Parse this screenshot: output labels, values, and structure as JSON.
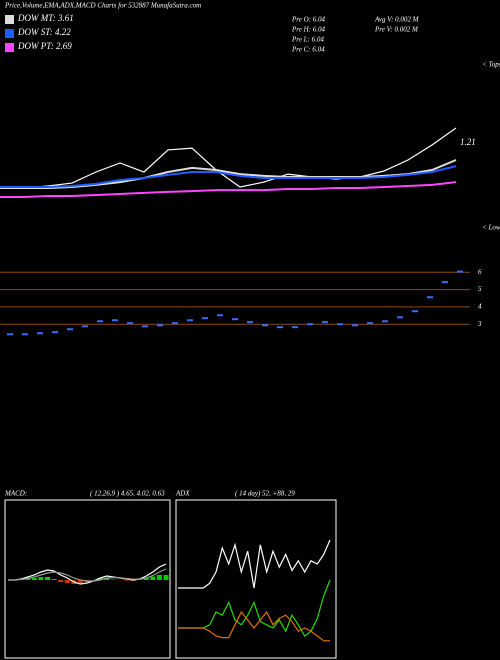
{
  "header": {
    "title": "Price,Volume,EMA,ADX,MACD Charts for 532887 MunafaSutra.com",
    "info": [
      "Pre O: 6.04",
      "Pre H: 6.04",
      "Pre L: 6.04",
      "Pre C: 6.04"
    ],
    "volume": [
      "Avg V: 0.002 M",
      "Pre V: 0.002 M"
    ]
  },
  "chart_data": [
    {
      "type": "line",
      "annotation": "1.21",
      "tops_label": "< Tops",
      "lows_label": "< Lows",
      "ylim": [
        0,
        100
      ],
      "series": [
        {
          "color": "#ffffff",
          "values": [
            25.3,
            24.7,
            25.9,
            27.6,
            34.1,
            39.4,
            34.1,
            47.1,
            48.2,
            35.3,
            25.3,
            28.2,
            32.9,
            31.2,
            30.0,
            31.2,
            34.7,
            41.2,
            50.0,
            60.0
          ]
        },
        {
          "name": "DOW MT: 3.61",
          "color": "#dddddd",
          "values": [
            24.7,
            24.7,
            24.7,
            25.3,
            26.5,
            28.2,
            30.6,
            34.1,
            36.5,
            35.3,
            32.9,
            31.8,
            31.2,
            31.2,
            31.2,
            31.2,
            31.8,
            32.9,
            35.3,
            41.2
          ]
        },
        {
          "name": "DOW ST: 4.22",
          "color": "#1f5cff",
          "values": [
            25.3,
            25.3,
            25.3,
            25.9,
            27.1,
            29.4,
            30.6,
            32.4,
            34.1,
            34.1,
            31.8,
            30.6,
            30.6,
            30.6,
            30.6,
            30.6,
            31.2,
            32.4,
            34.1,
            37.6
          ]
        },
        {
          "name": "DOW PT: 2.69",
          "color": "#ff44ff",
          "values": [
            19.4,
            19.4,
            20.0,
            20.0,
            20.6,
            21.2,
            21.8,
            22.4,
            22.9,
            23.5,
            23.5,
            23.5,
            24.1,
            24.1,
            24.7,
            24.7,
            25.3,
            25.9,
            26.5,
            28.2
          ]
        }
      ]
    },
    {
      "type": "dash",
      "color": "#3a6cff",
      "grid_color": "#8b4a12",
      "ylim": [
        1.8,
        7.0
      ],
      "yticks": [
        3,
        4,
        5,
        6
      ],
      "values": [
        2.42,
        2.42,
        2.48,
        2.54,
        2.71,
        2.88,
        3.17,
        3.23,
        3.06,
        2.88,
        2.94,
        3.06,
        3.23,
        3.35,
        3.52,
        3.29,
        3.12,
        2.94,
        2.83,
        2.83,
        3.0,
        3.12,
        3.0,
        2.94,
        3.06,
        3.17,
        3.4,
        3.75,
        4.56,
        5.43,
        6.04
      ]
    },
    {
      "type": "line",
      "title": "MACD:",
      "subtitle": "( 12,26,9 ) 4.65, 4.02, 0.63",
      "ylim": [
        -8,
        8
      ],
      "series": [
        {
          "style": "bar",
          "color": "#00cc00",
          "negative_color": "#cc3300",
          "values": [
            0,
            0,
            0.05,
            0.15,
            0.2,
            0.3,
            0.3,
            0.1,
            -0.2,
            -0.3,
            -0.4,
            -0.4,
            -0.2,
            0,
            0.2,
            0.2,
            0.05,
            -0.02,
            -0.05,
            -0.08,
            0.02,
            0.2,
            0.35,
            0.5,
            0.5
          ]
        },
        {
          "color": "#ffffff",
          "values": [
            0,
            0,
            0.1,
            0.3,
            0.5,
            0.8,
            1.0,
            0.9,
            0.5,
            0.2,
            -0.2,
            -0.4,
            -0.3,
            -0.1,
            0.2,
            0.4,
            0.3,
            0.2,
            0.1,
            0,
            0.1,
            0.4,
            0.8,
            1.3,
            1.6
          ]
        },
        {
          "color": "#999999",
          "values": [
            0,
            0,
            0.05,
            0.15,
            0.3,
            0.5,
            0.7,
            0.8,
            0.7,
            0.5,
            0.2,
            0,
            -0.1,
            -0.1,
            0,
            0.2,
            0.25,
            0.22,
            0.15,
            0.08,
            0.08,
            0.2,
            0.45,
            0.8,
            1.1
          ]
        }
      ]
    },
    {
      "type": "line",
      "title": "ADX",
      "subtitle": "( 14 day) 52, +88, 29",
      "ylim": [
        0,
        100
      ],
      "series": [
        {
          "color": "#ffffff",
          "values": [
            45,
            45,
            45,
            45,
            45,
            48,
            55,
            70,
            60,
            72,
            55,
            68,
            45,
            72,
            55,
            68,
            58,
            66,
            56,
            62,
            55,
            62,
            60,
            66,
            75
          ]
        },
        {
          "color": "#22dd00",
          "values": [
            20,
            20,
            20,
            20,
            20,
            22,
            30,
            28,
            36,
            25,
            22,
            28,
            36,
            24,
            22,
            20,
            25,
            18,
            28,
            22,
            15,
            18,
            26,
            40,
            50
          ]
        },
        {
          "color": "#e07000",
          "values": [
            20,
            20,
            20,
            20,
            20,
            18,
            15,
            14,
            14,
            22,
            30,
            25,
            20,
            25,
            30,
            22,
            26,
            28,
            24,
            18,
            20,
            18,
            15,
            12,
            12
          ]
        }
      ]
    }
  ]
}
